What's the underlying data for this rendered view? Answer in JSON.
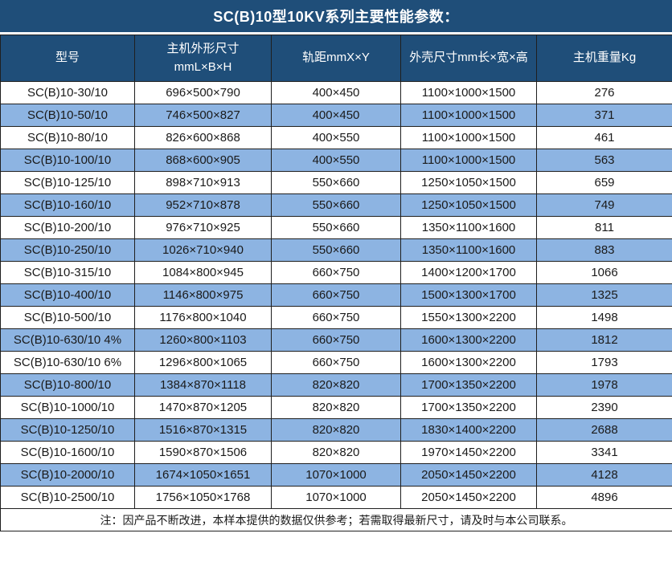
{
  "title": "SC(B)10型10KV系列主要性能参数：",
  "colors": {
    "header_bg": "#1F4E79",
    "alt_row_bg": "#8DB4E2",
    "row_bg": "#FFFFFF",
    "border": "#1F1F1F",
    "header_text": "#FFFFFF",
    "body_text": "#1A1A1A"
  },
  "table": {
    "headers": [
      "型号",
      "主机外形尺寸\nmmL×B×H",
      "轨距mmX×Y",
      "外壳尺寸mm长×宽×高",
      "主机重量Kg"
    ],
    "rows": [
      [
        "SC(B)10-30/10",
        "696×500×790",
        "400×450",
        "1100×1000×1500",
        "276"
      ],
      [
        "SC(B)10-50/10",
        "746×500×827",
        "400×450",
        "1100×1000×1500",
        "371"
      ],
      [
        "SC(B)10-80/10",
        "826×600×868",
        "400×550",
        "1100×1000×1500",
        "461"
      ],
      [
        "SC(B)10-100/10",
        "868×600×905",
        "400×550",
        "1100×1000×1500",
        "563"
      ],
      [
        "SC(B)10-125/10",
        "898×710×913",
        "550×660",
        "1250×1050×1500",
        "659"
      ],
      [
        "SC(B)10-160/10",
        "952×710×878",
        "550×660",
        "1250×1050×1500",
        "749"
      ],
      [
        "SC(B)10-200/10",
        "976×710×925",
        "550×660",
        "1350×1100×1600",
        "811"
      ],
      [
        "SC(B)10-250/10",
        "1026×710×940",
        "550×660",
        "1350×1100×1600",
        "883"
      ],
      [
        "SC(B)10-315/10",
        "1084×800×945",
        "660×750",
        "1400×1200×1700",
        "1066"
      ],
      [
        "SC(B)10-400/10",
        "1146×800×975",
        "660×750",
        "1500×1300×1700",
        "1325"
      ],
      [
        "SC(B)10-500/10",
        "1176×800×1040",
        "660×750",
        "1550×1300×2200",
        "1498"
      ],
      [
        "SC(B)10-630/10 4%",
        "1260×800×1103",
        "660×750",
        "1600×1300×2200",
        "1812"
      ],
      [
        "SC(B)10-630/10 6%",
        "1296×800×1065",
        "660×750",
        "1600×1300×2200",
        "1793"
      ],
      [
        "SC(B)10-800/10",
        "1384×870×1118",
        "820×820",
        "1700×1350×2200",
        "1978"
      ],
      [
        "SC(B)10-1000/10",
        "1470×870×1205",
        "820×820",
        "1700×1350×2200",
        "2390"
      ],
      [
        "SC(B)10-1250/10",
        "1516×870×1315",
        "820×820",
        "1830×1400×2200",
        "2688"
      ],
      [
        "SC(B)10-1600/10",
        "1590×870×1506",
        "820×820",
        "1970×1450×2200",
        "3341"
      ],
      [
        "SC(B)10-2000/10",
        "1674×1050×1651",
        "1070×1000",
        "2050×1450×2200",
        "4128"
      ],
      [
        "SC(B)10-2500/10",
        "1756×1050×1768",
        "1070×1000",
        "2050×1450×2200",
        "4896"
      ]
    ]
  },
  "note": "注：因产品不断改进，本样本提供的数据仅供参考；若需取得最新尺寸，请及时与本公司联系。"
}
